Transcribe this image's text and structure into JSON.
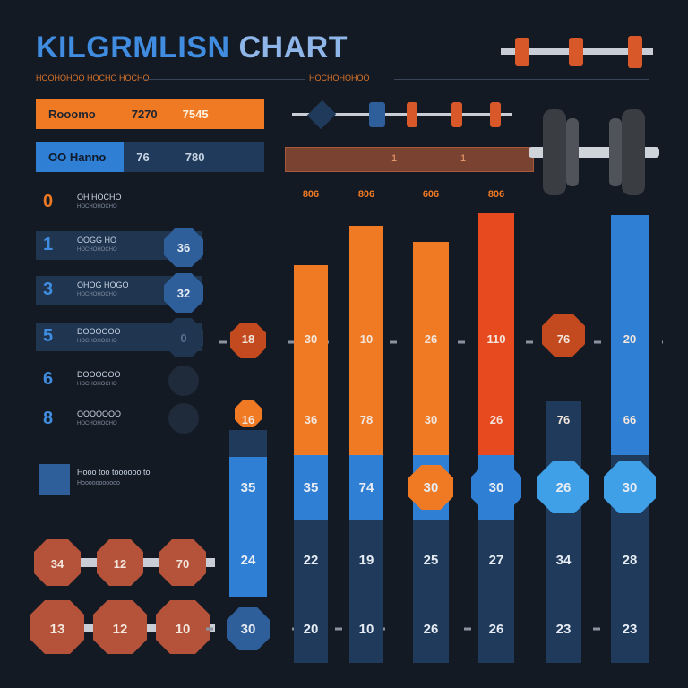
{
  "title_part1": "KILGRMLISN",
  "title_part2": "CHART",
  "subtitle_left": "HOOHOHOO HOCHO HOCHO",
  "subtitle_right": "HOCHOHOHOO",
  "colors": {
    "orange": "#f07a24",
    "orange_dark": "#c24a1e",
    "blue": "#2f7fd4",
    "blue_dark": "#1f3a5a",
    "plate": "#b5523a"
  },
  "top_bars": [
    {
      "label": "Rooomo",
      "v1": "7270",
      "v2": "7545"
    },
    {
      "label": "OO Hanno",
      "v1": "76",
      "v2": "780"
    }
  ],
  "right_banner": {
    "a": "1",
    "b": "1"
  },
  "list": [
    {
      "num": "0",
      "text": "OH HOCHO",
      "sub": "HOCHOHOCHO"
    },
    {
      "num": "1",
      "text": "OOGG HO",
      "sub": "HOCHOHOCHO",
      "badge": "36"
    },
    {
      "num": "3",
      "text": "OHOG HOGO",
      "sub": "HOCHOHOCHO",
      "badge": "32"
    },
    {
      "num": "5",
      "text": "DOOOOOO",
      "sub": "HOCHOHOCHO",
      "badge": "0"
    },
    {
      "num": "6",
      "text": "DOOOOOO",
      "sub": "HOCHOHOCHO"
    },
    {
      "num": "8",
      "text": "OOOOOOO",
      "sub": "HOCHOHOCHO"
    }
  ],
  "footer_note": {
    "line1": "Hooo too toooooo to",
    "line2": "Hooooooooooo"
  },
  "chart_data": {
    "type": "bar",
    "categories": [
      "",
      "",
      "",
      "",
      "",
      "",
      ""
    ],
    "series": [
      {
        "values": [
          18,
          30,
          10,
          26,
          110,
          76,
          20
        ]
      },
      {
        "values": [
          16,
          36,
          78,
          30,
          26,
          76,
          66
        ]
      },
      {
        "values": [
          35,
          35,
          74,
          30,
          30,
          26,
          30
        ]
      },
      {
        "values": [
          24,
          22,
          19,
          25,
          27,
          34,
          28
        ]
      },
      {
        "values": [
          30,
          20,
          10,
          26,
          26,
          23,
          23
        ]
      }
    ],
    "top_labels": [
      "",
      "806",
      "806",
      "606",
      "806",
      "",
      ""
    ],
    "title": "",
    "xlabel": "",
    "ylabel": ""
  },
  "plates_left": [
    {
      "label": "34"
    },
    {
      "label": "12"
    },
    {
      "label": "70"
    },
    {
      "label": "13"
    },
    {
      "label": "12"
    },
    {
      "label": "10"
    }
  ]
}
